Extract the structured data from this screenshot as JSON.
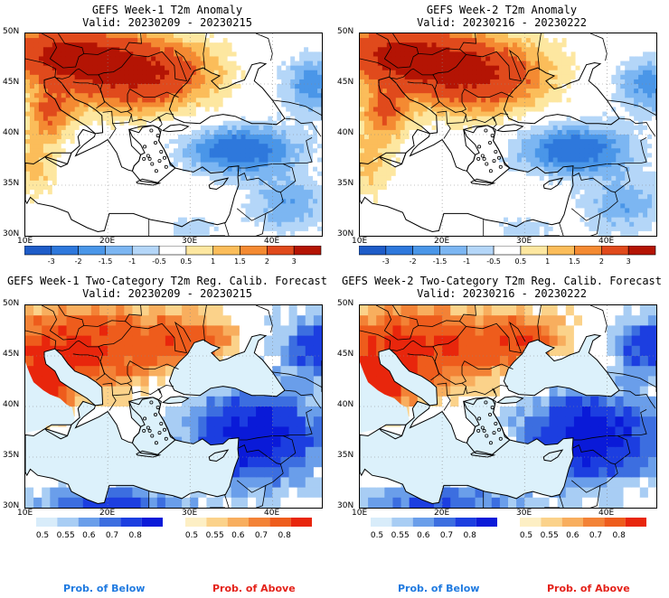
{
  "panels": [
    {
      "id": "p1",
      "title": "GEFS Week-1 T2m Anomaly",
      "valid": "Valid: 20230209 - 20230215",
      "kind": "anomaly"
    },
    {
      "id": "p2",
      "title": "GEFS Week-2 T2m Anomaly",
      "valid": "Valid: 20230216 - 20230222",
      "kind": "anomaly"
    },
    {
      "id": "p3",
      "title": "GEFS Week-1 Two-Category T2m Reg. Calib. Forecast",
      "valid": "Valid: 20230209 - 20230215",
      "kind": "prob"
    },
    {
      "id": "p4",
      "title": "GEFS Week-2 Two-Category T2m Reg. Calib. Forecast",
      "valid": "Valid: 20230216 - 20230222",
      "kind": "prob"
    }
  ],
  "lat_labels": [
    "50N",
    "45N",
    "40N",
    "35N",
    "30N"
  ],
  "lon_labels": [
    "10E",
    "20E",
    "30E",
    "40E"
  ],
  "anomaly_colorbar": {
    "ticks": [
      "-3",
      "-2",
      "-1.5",
      "-1",
      "-0.5",
      "0.5",
      "1",
      "1.5",
      "2",
      "3"
    ],
    "colors": [
      "#1e5cc8",
      "#2e78dc",
      "#4a96e8",
      "#7cb6f2",
      "#b4d6f8",
      "#ffffff",
      "#fde7a0",
      "#fbbd5a",
      "#f48a32",
      "#e04a1c",
      "#b41404"
    ]
  },
  "prob_below_colorbar": {
    "ticks": [
      "0.5",
      "0.55",
      "0.6",
      "0.7",
      "0.8"
    ],
    "colors": [
      "#d8ecfa",
      "#a8cdf4",
      "#6a9eea",
      "#3c6ee0",
      "#1c3ee0",
      "#0a1ad8"
    ]
  },
  "prob_above_colorbar": {
    "ticks": [
      "0.5",
      "0.55",
      "0.6",
      "0.7",
      "0.8"
    ],
    "colors": [
      "#fdefc4",
      "#fbd28a",
      "#f8ae5e",
      "#f38236",
      "#ee5c1c",
      "#e8260c"
    ]
  },
  "footer": {
    "below_label": "Prob. of Below",
    "above_label": "Prob. of Above",
    "below_color": "#1f7ae0",
    "above_color": "#e4221a"
  }
}
